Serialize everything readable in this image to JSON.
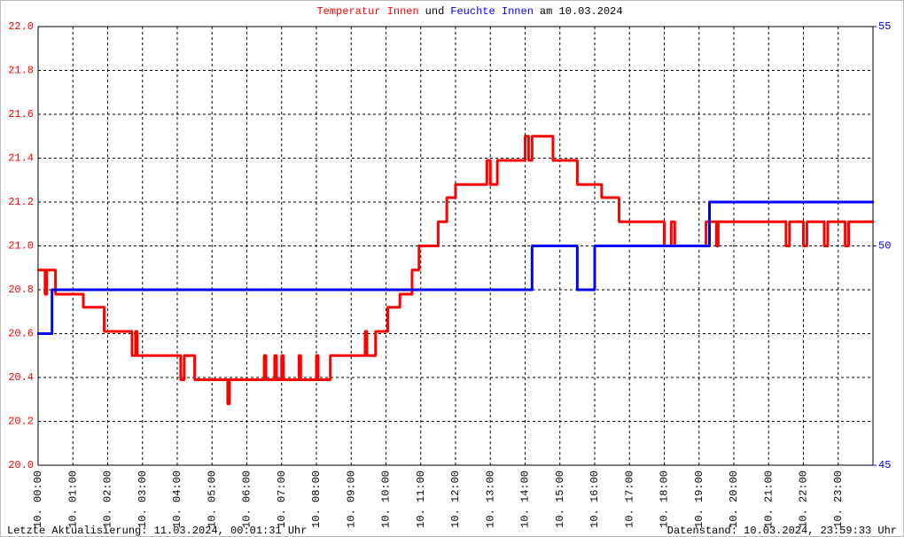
{
  "chart_data": {
    "type": "line",
    "title": [
      {
        "text": "Temperatur Innen",
        "color": "#ff0000"
      },
      {
        "text": "und",
        "color": "#000000"
      },
      {
        "text": "Feuchte Innen",
        "color": "#0000ff"
      },
      {
        "text": "am 10.03.2024",
        "color": "#000000"
      }
    ],
    "footer_left": "Letzte Aktualisierung: 11.03.2024, 00:01:31 Uhr",
    "footer_right": "Datenstand: 10.03.2024, 23:59:33 Uhr",
    "xlim": [
      0,
      24
    ],
    "xticks": [
      {
        "value": 0,
        "label": "10. 00:00"
      },
      {
        "value": 1,
        "label": "10. 01:00"
      },
      {
        "value": 2,
        "label": "10. 02:00"
      },
      {
        "value": 3,
        "label": "10. 03:00"
      },
      {
        "value": 4,
        "label": "10. 04:00"
      },
      {
        "value": 5,
        "label": "10. 05:00"
      },
      {
        "value": 6,
        "label": "10. 06:00"
      },
      {
        "value": 7,
        "label": "10. 07:00"
      },
      {
        "value": 8,
        "label": "10. 08:00"
      },
      {
        "value": 9,
        "label": "10. 09:00"
      },
      {
        "value": 10,
        "label": "10. 10:00"
      },
      {
        "value": 11,
        "label": "10. 11:00"
      },
      {
        "value": 12,
        "label": "10. 12:00"
      },
      {
        "value": 13,
        "label": "10. 13:00"
      },
      {
        "value": 14,
        "label": "10. 14:00"
      },
      {
        "value": 15,
        "label": "10. 15:00"
      },
      {
        "value": 16,
        "label": "10. 16:00"
      },
      {
        "value": 17,
        "label": "10. 17:00"
      },
      {
        "value": 18,
        "label": "10. 18:00"
      },
      {
        "value": 19,
        "label": "10. 19:00"
      },
      {
        "value": 20,
        "label": "10. 20:00"
      },
      {
        "value": 21,
        "label": "10. 21:00"
      },
      {
        "value": 22,
        "label": "10. 22:00"
      },
      {
        "value": 23,
        "label": "10. 23:00"
      }
    ],
    "ylim": [
      20.0,
      22.0
    ],
    "yticks": [
      {
        "value": 20.0,
        "label": "20.0"
      },
      20.2,
      20.4,
      20.6,
      20.8,
      {
        "value": 21.0,
        "label": "21.0"
      },
      21.2,
      21.4,
      21.6,
      21.8,
      {
        "value": 22.0,
        "label": "22.0"
      }
    ],
    "y2lim": [
      45,
      55
    ],
    "y2ticks": [
      45,
      50,
      55
    ],
    "y2color": "#0000ff",
    "grid": true,
    "step": true,
    "series": [
      {
        "name": "Temperatur Innen",
        "color": "#ff0000",
        "x": [
          0,
          0.2,
          0.25,
          0.5,
          1.3,
          1.9,
          2.7,
          2.8,
          2.85,
          4.1,
          4.2,
          4.5,
          5.45,
          5.5,
          6.5,
          6.55,
          6.8,
          6.85,
          7.0,
          7.05,
          7.5,
          7.55,
          8.0,
          8.05,
          8.4,
          9.4,
          9.45,
          9.7,
          10.05,
          10.4,
          10.75,
          10.95,
          11.5,
          11.75,
          12.0,
          12.9,
          13.0,
          13.2,
          14.0,
          14.1,
          14.2,
          14.8,
          15.5,
          16.2,
          16.7,
          18.0,
          18.2,
          18.3,
          19.2,
          19.5,
          19.55,
          21.5,
          21.6,
          22.0,
          22.1,
          22.6,
          22.7,
          23.2,
          23.3,
          24.0
        ],
        "values": [
          20.89,
          20.78,
          20.89,
          20.78,
          20.72,
          20.61,
          20.5,
          20.61,
          20.5,
          20.39,
          20.5,
          20.39,
          20.28,
          20.39,
          20.5,
          20.39,
          20.5,
          20.39,
          20.5,
          20.39,
          20.5,
          20.39,
          20.5,
          20.39,
          20.5,
          20.61,
          20.5,
          20.61,
          20.72,
          20.78,
          20.89,
          21.0,
          21.11,
          21.22,
          21.28,
          21.39,
          21.28,
          21.39,
          21.5,
          21.39,
          21.5,
          21.39,
          21.28,
          21.22,
          21.11,
          21.0,
          21.11,
          21.0,
          21.11,
          21.0,
          21.11,
          21.0,
          21.11,
          21.0,
          21.11,
          21.0,
          21.11,
          21.0,
          21.11,
          21.11
        ]
      },
      {
        "name": "Feuchte Innen",
        "color": "#0000ff",
        "axis": "y2",
        "x": [
          0,
          0.4,
          14.2,
          15.5,
          16.0,
          19.3,
          24.0
        ],
        "values": [
          48,
          49,
          50,
          49,
          50,
          51,
          51
        ]
      }
    ]
  }
}
